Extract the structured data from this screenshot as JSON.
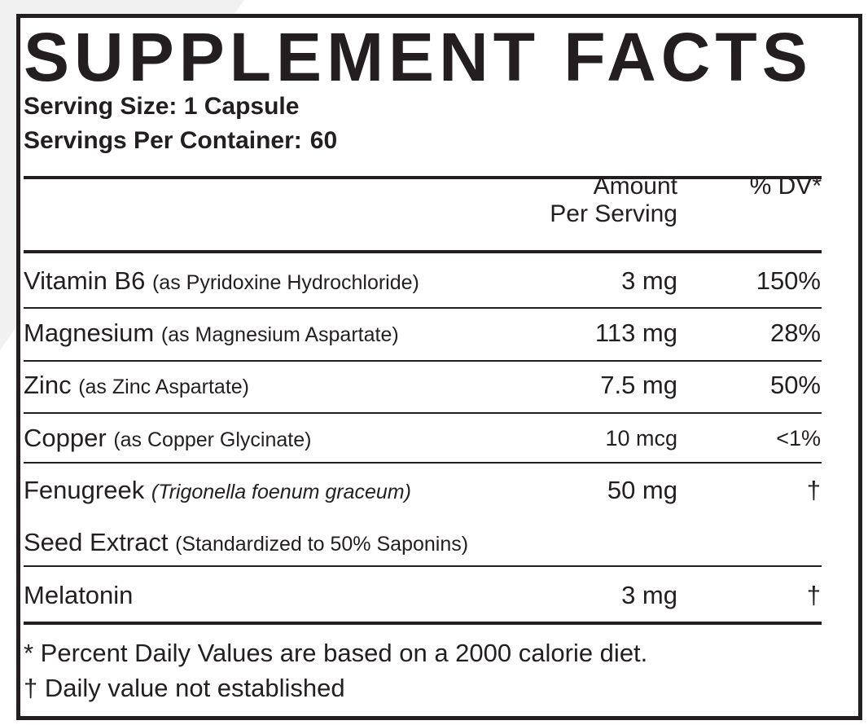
{
  "title": "SUPPLEMENT FACTS",
  "serving_size": "Serving Size: 1 Capsule",
  "servings_per_container": {
    "label": "Servings Per Container:",
    "value": "60"
  },
  "columns": {
    "amount_line1": "Amount",
    "amount_line2": "Per Serving",
    "dv": "% DV*"
  },
  "rows": [
    {
      "name": "Vitamin B6",
      "detail": "(as Pyridoxine Hydrochloride)",
      "amount": "3 mg",
      "dv": "150%"
    },
    {
      "name": "Magnesium",
      "detail": "(as Magnesium Aspartate)",
      "amount": "113 mg",
      "dv": "28%"
    },
    {
      "name": "Zinc",
      "detail": "(as Zinc Aspartate)",
      "amount": "7.5 mg",
      "dv": "50%"
    },
    {
      "name": "Copper",
      "detail": "(as Copper Glycinate)",
      "amount": "10 mcg",
      "dv": "<1%"
    },
    {
      "name": "Fenugreek",
      "detail": "(Trigonella foenum graceum)",
      "amount": "50 mg",
      "dv": "†",
      "line2_name": "Seed Extract",
      "line2_detail": "(Standardized to 50% Saponins)"
    },
    {
      "name": "Melatonin",
      "detail": "",
      "amount": "3 mg",
      "dv": "†"
    }
  ],
  "footnotes": {
    "percent_note": "* Percent Daily Values are based on a 2000 calorie diet.",
    "dagger_note": "† Daily value not established"
  },
  "colors": {
    "ink": "#231f20",
    "background": "#ffffff",
    "shadow": "#f1f1f1"
  }
}
